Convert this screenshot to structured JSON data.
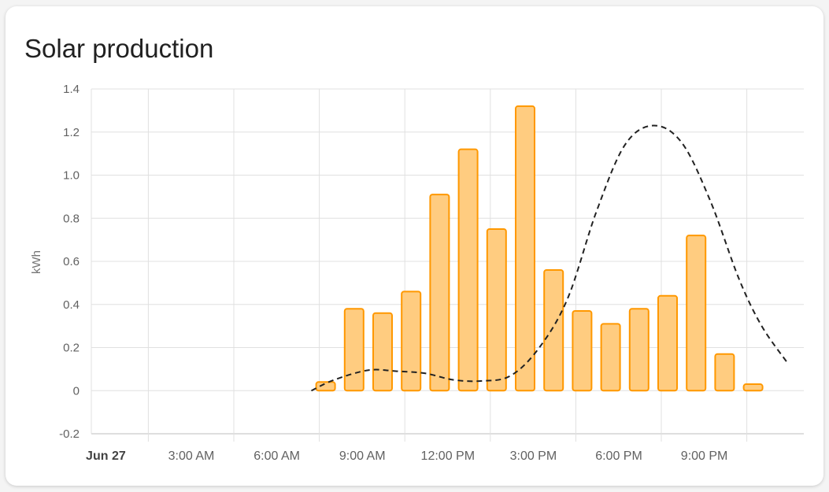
{
  "card": {
    "title": "Solar production"
  },
  "chart_data": {
    "type": "bar",
    "ylabel": "kWh",
    "ylim": [
      -0.2,
      1.4
    ],
    "yticks": [
      "1.4",
      "1.2",
      "1.0",
      "0.8",
      "0.6",
      "0.4",
      "0.2",
      "0",
      "-0.2"
    ],
    "xticks": [
      {
        "label": "Jun 27",
        "hour": 0,
        "bold": true
      },
      {
        "label": "3:00 AM",
        "hour": 3
      },
      {
        "label": "6:00 AM",
        "hour": 6
      },
      {
        "label": "9:00 AM",
        "hour": 9
      },
      {
        "label": "12:00 PM",
        "hour": 12
      },
      {
        "label": "3:00 PM",
        "hour": 15
      },
      {
        "label": "6:00 PM",
        "hour": 18
      },
      {
        "label": "9:00 PM",
        "hour": 21
      }
    ],
    "xlim_hours": [
      -2,
      23
    ],
    "grid": true,
    "series": [
      {
        "type": "bar",
        "color": "#ff9800",
        "fill": "#ffcc80",
        "points": [
          {
            "hour": 6,
            "value": 0.04
          },
          {
            "hour": 7,
            "value": 0.38
          },
          {
            "hour": 8,
            "value": 0.36
          },
          {
            "hour": 9,
            "value": 0.46
          },
          {
            "hour": 10,
            "value": 0.91
          },
          {
            "hour": 11,
            "value": 1.12
          },
          {
            "hour": 12,
            "value": 0.75
          },
          {
            "hour": 13,
            "value": 1.32
          },
          {
            "hour": 14,
            "value": 0.56
          },
          {
            "hour": 15,
            "value": 0.37
          },
          {
            "hour": 16,
            "value": 0.31
          },
          {
            "hour": 17,
            "value": 0.38
          },
          {
            "hour": 18,
            "value": 0.44
          },
          {
            "hour": 19,
            "value": 0.72
          },
          {
            "hour": 20,
            "value": 0.17
          },
          {
            "hour": 21,
            "value": 0.03
          }
        ]
      },
      {
        "type": "line",
        "style": "dashed",
        "color": "#222222",
        "points": [
          {
            "hour": 5.5,
            "value": 0.0
          },
          {
            "hour": 6.3,
            "value": 0.05
          },
          {
            "hour": 7.5,
            "value": 0.095
          },
          {
            "hour": 8.5,
            "value": 0.09
          },
          {
            "hour": 9.5,
            "value": 0.08
          },
          {
            "hour": 10.5,
            "value": 0.05
          },
          {
            "hour": 11.5,
            "value": 0.045
          },
          {
            "hour": 12.5,
            "value": 0.07
          },
          {
            "hour": 13.5,
            "value": 0.2
          },
          {
            "hour": 14.5,
            "value": 0.43
          },
          {
            "hour": 15.5,
            "value": 0.83
          },
          {
            "hour": 16.5,
            "value": 1.14
          },
          {
            "hour": 17.5,
            "value": 1.23
          },
          {
            "hour": 18.5,
            "value": 1.15
          },
          {
            "hour": 19.5,
            "value": 0.88
          },
          {
            "hour": 20.5,
            "value": 0.52
          },
          {
            "hour": 21.3,
            "value": 0.3
          },
          {
            "hour": 22.2,
            "value": 0.13
          }
        ]
      }
    ]
  }
}
